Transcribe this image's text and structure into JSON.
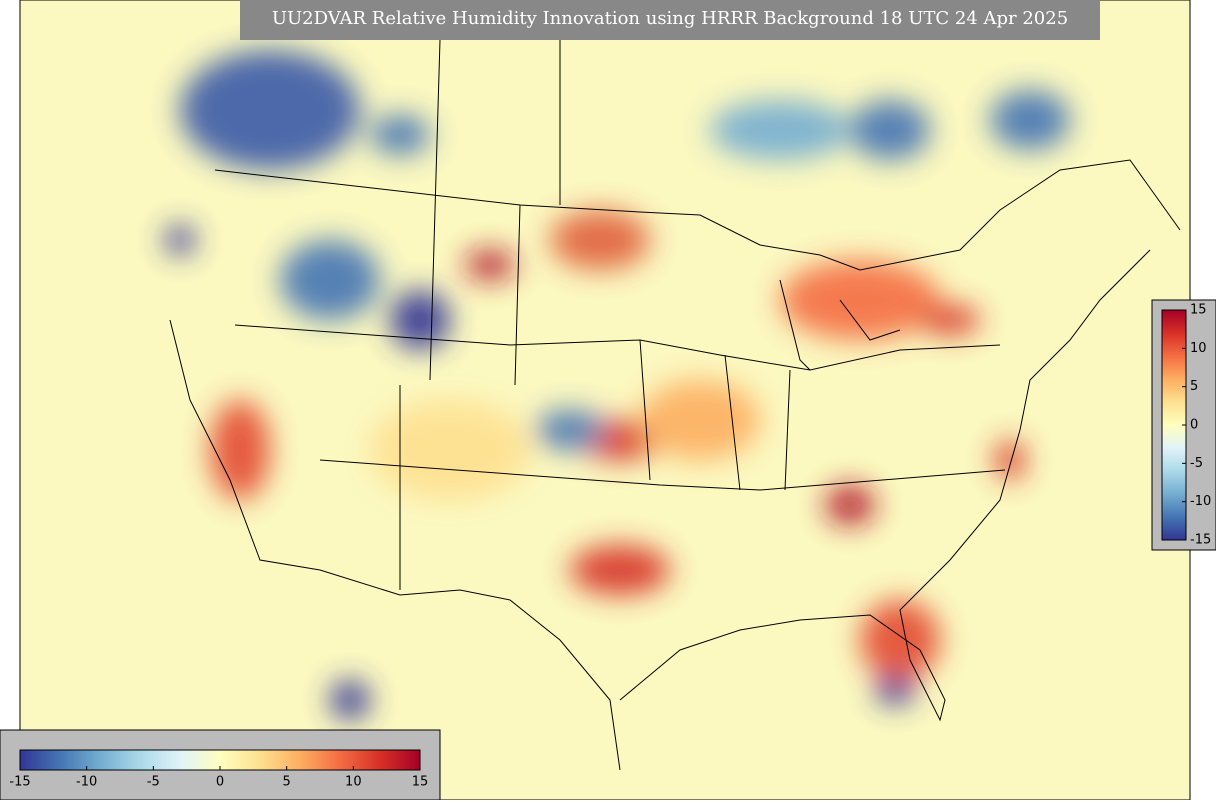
{
  "title": "UU2DVAR Relative Humidity Innovation using HRRR Background 18 UTC 24 Apr 2025",
  "colorbar": {
    "lim": [
      -15,
      15
    ],
    "ticks": [
      -15,
      -10,
      -5,
      0,
      5,
      10,
      15
    ],
    "colormap": [
      "#313695",
      "#4575b4",
      "#74add1",
      "#abd9e9",
      "#e0f3f8",
      "#ffffbf",
      "#fee090",
      "#fdae61",
      "#f46d43",
      "#d73027",
      "#a50026"
    ]
  }
}
